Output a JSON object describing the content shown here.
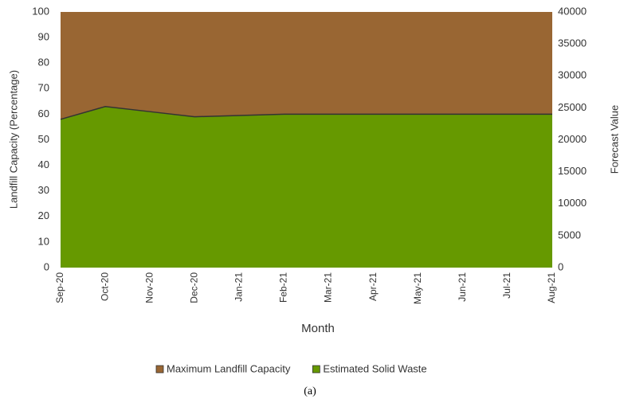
{
  "chart_data": {
    "type": "area",
    "caption": "(a)",
    "xlabel": "Month",
    "ylabel": "Landfill Capacity (Percentage)",
    "y2label": "Forecast Value",
    "categories": [
      "Sep-20",
      "Oct-20",
      "Nov-20",
      "Dec-20",
      "Jan-21",
      "Feb-21",
      "Mar-21",
      "Apr-21",
      "May-21",
      "Jun-21",
      "Jul-21",
      "Aug-21"
    ],
    "series": [
      {
        "name": "Maximum Landfill Capacity",
        "color": "#996633",
        "values": [
          100,
          100,
          100,
          100,
          100,
          100,
          100,
          100,
          100,
          100,
          100,
          100
        ]
      },
      {
        "name": "Estimated Solid Waste",
        "color": "#669900",
        "values": [
          58,
          63,
          61,
          59,
          59.5,
          60,
          60,
          60,
          60,
          60,
          60,
          60
        ]
      }
    ],
    "ylim": [
      0,
      100
    ],
    "yticks": [
      0,
      10,
      20,
      30,
      40,
      50,
      60,
      70,
      80,
      90,
      100
    ],
    "y2lim": [
      0,
      40000
    ],
    "y2ticks": [
      0,
      5000,
      10000,
      15000,
      20000,
      25000,
      30000,
      35000,
      40000
    ],
    "grid": false,
    "legend": "bottom"
  }
}
